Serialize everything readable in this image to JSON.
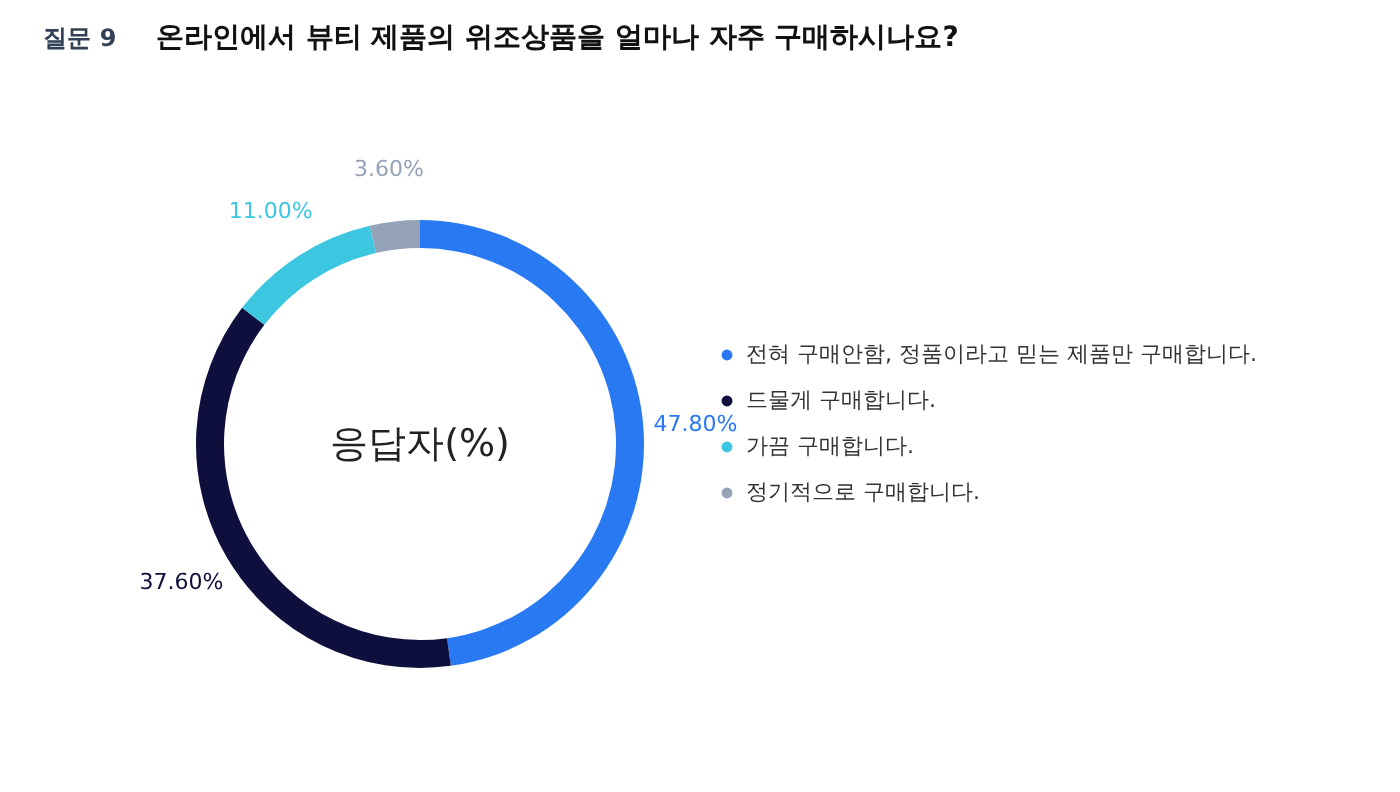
{
  "chart_data": {
    "type": "donut",
    "title": "온라인에서 뷰티 제품의 위조상품을 얼마나 자주 구매하시나요?",
    "annotations": [
      "질문 9",
      "응답자(%)"
    ],
    "categories": [
      "전혀 구매안함, 정품이라고 믿는 제품만 구매합니다.",
      "드물게 구매합니다.",
      "가끔 구매합니다.",
      "정기적으로 구매합니다."
    ],
    "values": [
      47.8,
      37.6,
      11.0,
      3.6
    ],
    "value_labels": [
      "47.80%",
      "37.60%",
      "11.00%",
      "3.60%"
    ],
    "colors": [
      "#2979f2",
      "#0f0f3d",
      "#3cc6e0",
      "#94a3b8"
    ],
    "legend": "right"
  }
}
